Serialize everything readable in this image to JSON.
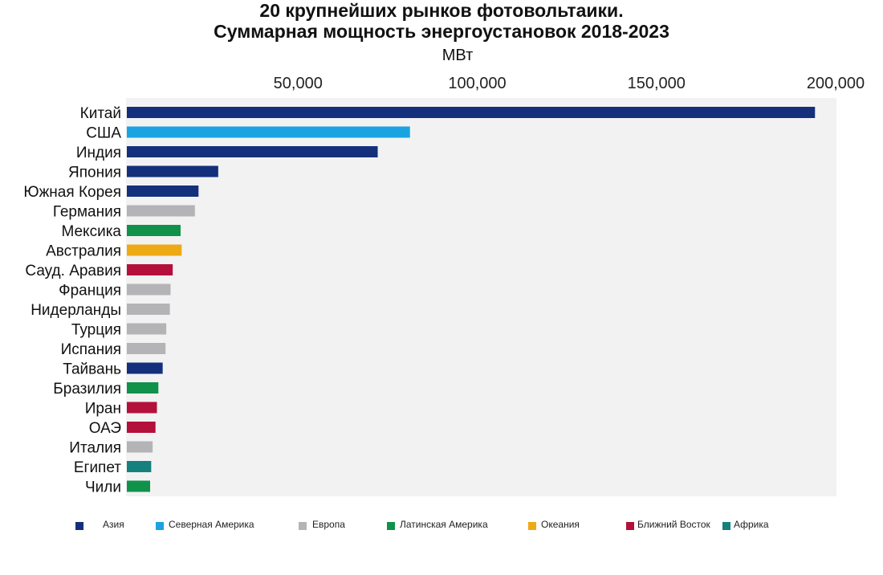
{
  "chart_data": {
    "type": "bar",
    "orientation": "horizontal",
    "title": "20 крупнейших рынков фотовольтаики.",
    "subtitle": "Суммарная мощность энергоустановок 2018-2023",
    "unit_label": "МВт",
    "xlim": [
      0,
      200000
    ],
    "x_ticks": [
      {
        "value": 50000,
        "label": "50,000"
      },
      {
        "value": 100000,
        "label": "100,000"
      },
      {
        "value": 150000,
        "label": "150,000"
      },
      {
        "value": 200000,
        "label": "200,000"
      }
    ],
    "grid": false,
    "legend_placement": "bottom",
    "categories": [
      "Китай",
      "США",
      "Индия",
      "Япония",
      "Южная Корея",
      "Германия",
      "Мексика",
      "Австралия",
      "Сауд. Аравия",
      "Франция",
      "Нидерланды",
      "Турция",
      "Испания",
      "Тайвань",
      "Бразилия",
      "Иран",
      "ОАЭ",
      "Италия",
      "Египет",
      "Чили"
    ],
    "values": [
      192000,
      79000,
      70000,
      25500,
      20000,
      19000,
      15000,
      15300,
      12800,
      12200,
      12000,
      11000,
      10800,
      10000,
      8800,
      8400,
      8000,
      7200,
      6800,
      6500
    ],
    "regions": [
      "Азия",
      "Северная Америка",
      "Азия",
      "Азия",
      "Азия",
      "Европа",
      "Латинская Америка",
      "Океания",
      "Ближний Восток",
      "Европа",
      "Европа",
      "Европа",
      "Европа",
      "Азия",
      "Латинская Америка",
      "Ближний Восток",
      "Ближний Восток",
      "Европа",
      "Африка",
      "Латинская Америка"
    ],
    "legend": [
      {
        "name": "Азия",
        "color": "#14307c"
      },
      {
        "name": "Северная Америка",
        "color": "#1aa3e0"
      },
      {
        "name": "Европа",
        "color": "#b4b4b6"
      },
      {
        "name": "Латинская Америка",
        "color": "#10924a"
      },
      {
        "name": "Океания",
        "color": "#eeaa14"
      },
      {
        "name": "Ближний Восток",
        "color": "#b4103c"
      },
      {
        "name": "Африка",
        "color": "#16807e"
      }
    ]
  }
}
